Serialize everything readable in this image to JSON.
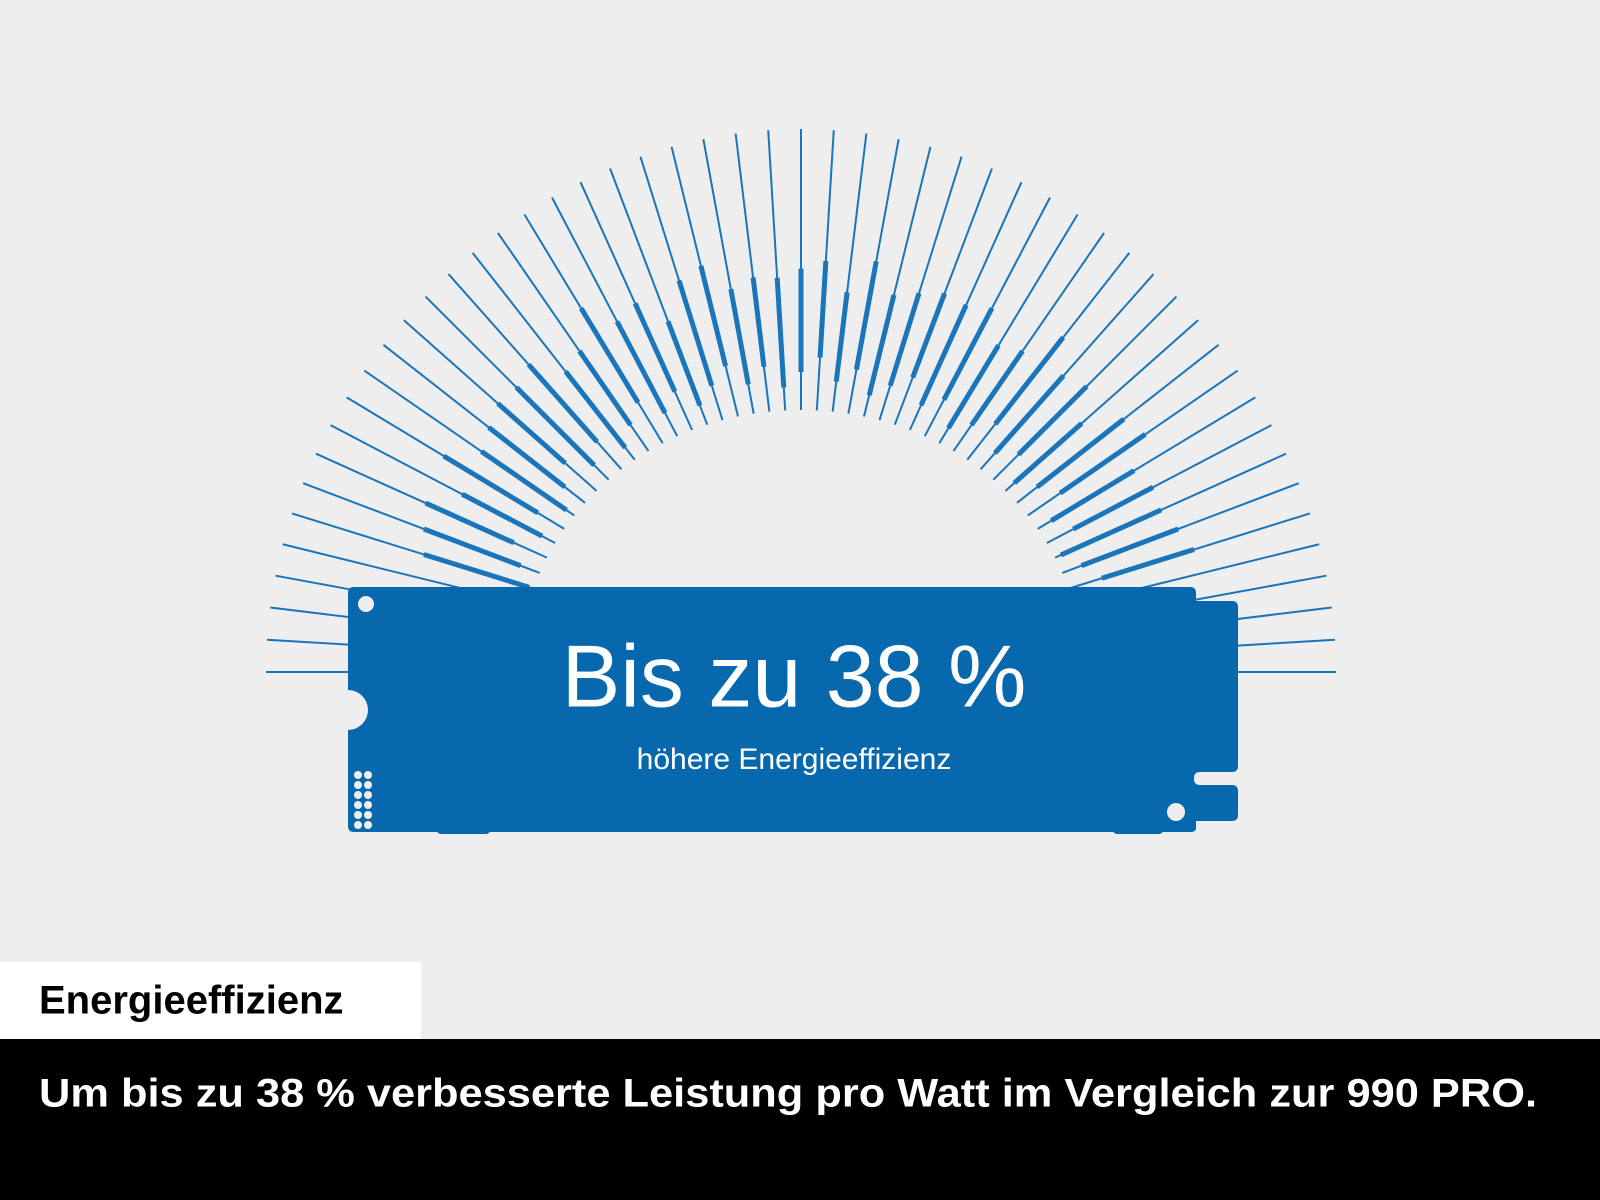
{
  "card": {
    "headline": "Bis zu 38 %",
    "subline": "höhere Energieeffizienz"
  },
  "caption": {
    "label": "Energieeffizienz",
    "text": "Um bis zu 38 % verbesserte Leistung pro Watt im Vergleich zur 990 PRO."
  }
}
